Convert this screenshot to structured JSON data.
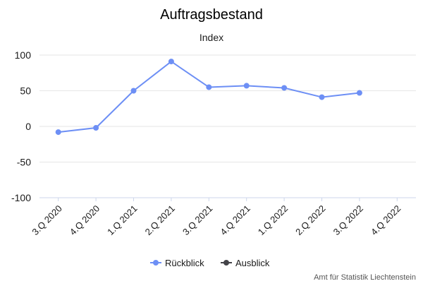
{
  "chart_data": {
    "type": "line",
    "title": "Auftragsbestand",
    "subtitle": "Index",
    "categories": [
      "3.Q 2020",
      "4.Q 2020",
      "1.Q 2021",
      "2.Q 2021",
      "3.Q 2021",
      "4.Q 2021",
      "1.Q 2022",
      "2.Q 2022",
      "3.Q 2022",
      "4.Q 2022"
    ],
    "series": [
      {
        "name": "Rückblick",
        "color": "#6d8ff5",
        "values": [
          -8,
          -2,
          50,
          91,
          55,
          57,
          54,
          41,
          47,
          null
        ]
      },
      {
        "name": "Ausblick",
        "color": "#434348",
        "values": [
          null,
          null,
          null,
          null,
          null,
          null,
          null,
          null,
          null,
          null
        ]
      }
    ],
    "yticks": [
      100,
      50,
      0,
      -50,
      -100
    ],
    "ylim": [
      -100,
      100
    ],
    "grid": true,
    "legend_position": "bottom-center"
  },
  "credits": "Amt für Statistik Liechtenstein"
}
